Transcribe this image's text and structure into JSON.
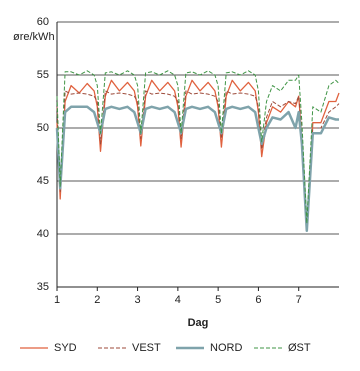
{
  "chart_data": {
    "type": "line",
    "ylabel": "øre/kWh",
    "xlabel": "Dag",
    "x": [
      1,
      1.08,
      1.2,
      1.35,
      1.55,
      1.75,
      1.92,
      2,
      2.08,
      2.2,
      2.35,
      2.55,
      2.75,
      2.92,
      3,
      3.08,
      3.2,
      3.35,
      3.55,
      3.75,
      3.92,
      4,
      4.08,
      4.2,
      4.35,
      4.55,
      4.75,
      4.92,
      5,
      5.08,
      5.2,
      5.35,
      5.55,
      5.75,
      5.92,
      6,
      6.08,
      6.2,
      6.35,
      6.55,
      6.75,
      6.92,
      7,
      7.08,
      7.2,
      7.35,
      7.55,
      7.75,
      7.92,
      8
    ],
    "xlim": [
      1,
      8
    ],
    "xticks": [
      1,
      2,
      3,
      4,
      5,
      6,
      7
    ],
    "ylim": [
      35,
      60
    ],
    "yticks": [
      35,
      40,
      45,
      50,
      55,
      60
    ],
    "grid": true,
    "legend": "bottom",
    "series": [
      {
        "name": "SYD",
        "color": "#e0623f",
        "style": "solid",
        "line_width": 1.3,
        "values": [
          50.5,
          43.3,
          52.5,
          54,
          53.3,
          54.2,
          53.5,
          52,
          47.8,
          53,
          54.5,
          53.5,
          54.3,
          53.5,
          52,
          48.3,
          53,
          54.5,
          53.5,
          54.3,
          53.5,
          52,
          48.2,
          53,
          54.5,
          53.5,
          54.3,
          53.5,
          52,
          48.2,
          53,
          54.5,
          53.5,
          54.3,
          53.5,
          51.5,
          47.3,
          50.5,
          52,
          51.5,
          52.5,
          52,
          53,
          49,
          40.5,
          50.5,
          50.5,
          52.5,
          52.5,
          53.3
        ]
      },
      {
        "name": "VEST",
        "color": "#9c4a3a",
        "style": "dashed",
        "line_width": 1,
        "values": [
          52,
          44,
          53.5,
          53.2,
          53.3,
          53.2,
          53,
          52.5,
          48.5,
          53.5,
          53.2,
          53.3,
          53.2,
          53,
          52.5,
          49,
          53.5,
          53.2,
          53.3,
          53.2,
          53,
          52.5,
          49,
          53.5,
          53.2,
          53.3,
          53.2,
          53,
          52.5,
          49,
          53.5,
          53.2,
          53.3,
          53.2,
          53,
          52,
          48,
          51,
          52.5,
          52,
          52.5,
          52.3,
          53,
          49.5,
          41,
          50,
          50,
          51.5,
          52,
          52.3
        ]
      },
      {
        "name": "NORD",
        "color": "#7fa3ab",
        "style": "solid",
        "line_width": 2.5,
        "values": [
          50,
          44.3,
          51.5,
          52,
          52,
          52,
          51.5,
          50.5,
          49.5,
          51.8,
          52,
          51.8,
          52,
          51.5,
          50.5,
          49.5,
          51.8,
          52,
          51.8,
          52,
          51.5,
          50.5,
          49.5,
          51.8,
          52,
          51.8,
          52,
          51.5,
          50.5,
          49.5,
          51.8,
          52,
          51.8,
          52,
          51.5,
          50,
          48.5,
          50,
          51,
          50.8,
          51.5,
          50,
          51.5,
          48.5,
          40.3,
          49.5,
          49.5,
          51,
          50.8,
          50.8
        ]
      },
      {
        "name": "ØST",
        "color": "#3f9445",
        "style": "dashed",
        "line_width": 1,
        "values": [
          53,
          44.5,
          55.3,
          55.3,
          55,
          55.4,
          55,
          54,
          49.5,
          55.2,
          55.3,
          55,
          55.4,
          55,
          54,
          49.5,
          55.2,
          55.3,
          55,
          55.4,
          55,
          54,
          49.5,
          55.2,
          55.3,
          55,
          55.4,
          55,
          54,
          49.5,
          55.2,
          55.3,
          55,
          55.4,
          55,
          53.5,
          48.7,
          52.5,
          54,
          53.5,
          54.5,
          54.5,
          55,
          50.5,
          41,
          52,
          51.5,
          54,
          54.5,
          54.2
        ]
      }
    ]
  }
}
